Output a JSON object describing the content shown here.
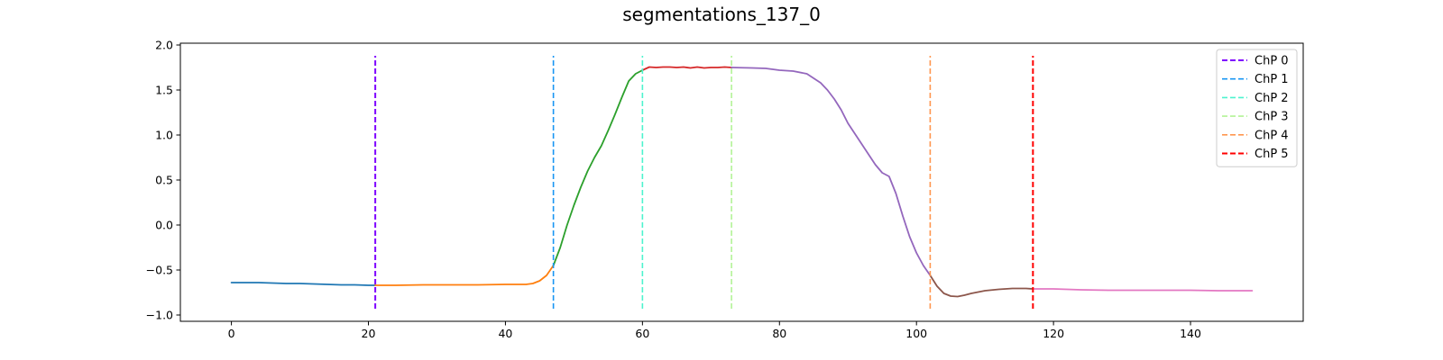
{
  "chart_data": {
    "type": "line",
    "title": "segmentations_137_0",
    "xlabel": "",
    "ylabel": "",
    "xlim": [
      -7.45,
      156.45
    ],
    "ylim": [
      -1.07,
      2.02
    ],
    "xticks": [
      0,
      20,
      40,
      60,
      80,
      100,
      120,
      140
    ],
    "yticks": [
      -1.0,
      -0.5,
      0.0,
      0.5,
      1.0,
      1.5,
      2.0
    ],
    "ytick_labels": [
      "−1.0",
      "−0.5",
      "0.0",
      "0.5",
      "1.0",
      "1.5",
      "2.0"
    ],
    "grid": false,
    "legend": {
      "placement": "top-right"
    },
    "segments": [
      {
        "color": "#1f77b4",
        "x": [
          0,
          2,
          4,
          6,
          8,
          10,
          12,
          14,
          16,
          18,
          20,
          21
        ],
        "y": [
          -0.64,
          -0.64,
          -0.64,
          -0.645,
          -0.65,
          -0.65,
          -0.655,
          -0.66,
          -0.665,
          -0.665,
          -0.67,
          -0.67
        ]
      },
      {
        "color": "#ff7f0e",
        "x": [
          21,
          24,
          28,
          32,
          36,
          40,
          42,
          43,
          44,
          45,
          46,
          47
        ],
        "y": [
          -0.67,
          -0.67,
          -0.665,
          -0.665,
          -0.665,
          -0.66,
          -0.66,
          -0.66,
          -0.65,
          -0.62,
          -0.56,
          -0.45
        ]
      },
      {
        "color": "#2ca02c",
        "x": [
          47,
          48,
          49,
          50,
          51,
          52,
          53,
          54,
          55,
          56,
          57,
          58,
          59,
          60
        ],
        "y": [
          -0.45,
          -0.25,
          0.0,
          0.22,
          0.42,
          0.6,
          0.75,
          0.88,
          1.05,
          1.23,
          1.42,
          1.6,
          1.68,
          1.72
        ]
      },
      {
        "color": "#d62728",
        "x": [
          60,
          61,
          62,
          63,
          64,
          65,
          66,
          67,
          68,
          69,
          70,
          71,
          72,
          73
        ],
        "y": [
          1.72,
          1.755,
          1.75,
          1.755,
          1.755,
          1.75,
          1.755,
          1.745,
          1.755,
          1.745,
          1.75,
          1.75,
          1.755,
          1.75
        ]
      },
      {
        "color": "#9467bd",
        "x": [
          73,
          76,
          78,
          80,
          82,
          84,
          86,
          87,
          88,
          89,
          90,
          92,
          94,
          95,
          96,
          97,
          98,
          99,
          100,
          101,
          102
        ],
        "y": [
          1.75,
          1.745,
          1.74,
          1.72,
          1.71,
          1.68,
          1.58,
          1.5,
          1.4,
          1.28,
          1.13,
          0.9,
          0.67,
          0.58,
          0.54,
          0.35,
          0.1,
          -0.13,
          -0.31,
          -0.45,
          -0.56
        ]
      },
      {
        "color": "#8c564b",
        "x": [
          102,
          103,
          104,
          105,
          106,
          107,
          108,
          110,
          112,
          114,
          116,
          117
        ],
        "y": [
          -0.56,
          -0.68,
          -0.76,
          -0.79,
          -0.795,
          -0.78,
          -0.76,
          -0.73,
          -0.715,
          -0.705,
          -0.705,
          -0.71
        ]
      },
      {
        "color": "#e377c2",
        "x": [
          117,
          120,
          124,
          128,
          132,
          136,
          140,
          144,
          148,
          149
        ],
        "y": [
          -0.71,
          -0.71,
          -0.72,
          -0.725,
          -0.725,
          -0.725,
          -0.725,
          -0.73,
          -0.73,
          -0.73
        ]
      }
    ],
    "changepoints": [
      {
        "name": "ChP 0",
        "x": 21,
        "color": "#7f00ff",
        "width": 2
      },
      {
        "name": "ChP 1",
        "x": 47,
        "color": "#1996f3",
        "width": 1.6
      },
      {
        "name": "ChP 2",
        "x": 60,
        "color": "#4df3ce",
        "width": 1.6
      },
      {
        "name": "ChP 3",
        "x": 73,
        "color": "#b2f396",
        "width": 1.6
      },
      {
        "name": "ChP 4",
        "x": 102,
        "color": "#ff964f",
        "width": 1.6
      },
      {
        "name": "ChP 5",
        "x": 117,
        "color": "#ff0000",
        "width": 2
      }
    ],
    "changepoint_range": [
      -0.93,
      1.88
    ]
  }
}
